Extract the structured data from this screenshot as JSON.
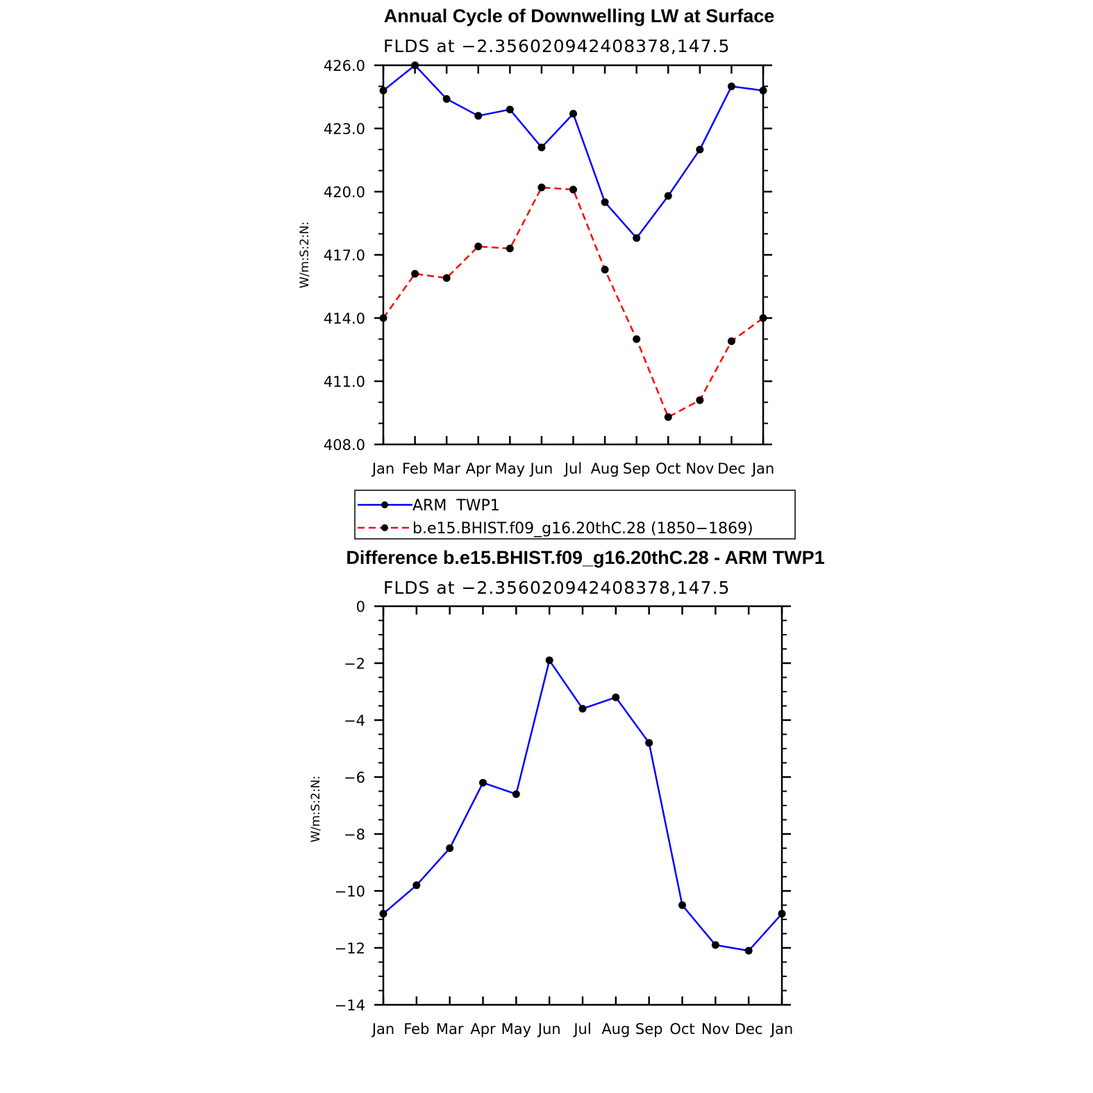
{
  "chart_data": [
    {
      "type": "line",
      "title": "Annual Cycle of Downwelling LW at Surface",
      "subtitle": "FLDS at −2.356020942408378,147.5",
      "xlabel": "",
      "ylabel": "W/m:S:2:N:",
      "categories": [
        "Jan",
        "Feb",
        "Mar",
        "Apr",
        "May",
        "Jun",
        "Jul",
        "Aug",
        "Sep",
        "Oct",
        "Nov",
        "Dec",
        "Jan"
      ],
      "ylim": [
        408.0,
        426.0
      ],
      "yticks": [
        "408.0",
        "411.0",
        "414.0",
        "417.0",
        "420.0",
        "423.0",
        "426.0"
      ],
      "series": [
        {
          "name": "ARM  TWP1",
          "color": "#0000ff",
          "dash": "solid",
          "values": [
            424.8,
            426.0,
            424.4,
            423.6,
            423.9,
            422.1,
            423.7,
            419.5,
            417.8,
            419.8,
            422.0,
            425.0,
            424.8
          ]
        },
        {
          "name": "b.e15.BHIST.f09_g16.20thC.28 (1850−1869)",
          "color": "#ff0000",
          "dash": "dashed",
          "values": [
            414.0,
            416.1,
            415.9,
            417.4,
            417.3,
            420.2,
            420.1,
            416.3,
            413.0,
            409.3,
            410.1,
            412.9,
            414.0
          ]
        }
      ]
    },
    {
      "type": "line",
      "title": "Difference b.e15.BHIST.f09_g16.20thC.28 - ARM TWP1",
      "subtitle": "FLDS at −2.356020942408378,147.5",
      "xlabel": "",
      "ylabel": "W/m:S:2:N:",
      "categories": [
        "Jan",
        "Feb",
        "Mar",
        "Apr",
        "May",
        "Jun",
        "Jul",
        "Aug",
        "Sep",
        "Oct",
        "Nov",
        "Dec",
        "Jan"
      ],
      "ylim": [
        -14,
        0
      ],
      "yticks": [
        "−14",
        "−12",
        "−10",
        "−8",
        "−6",
        "−4",
        "−2",
        "0"
      ],
      "series": [
        {
          "color": "#0000ff",
          "dash": "solid",
          "values": [
            -10.8,
            -9.8,
            -8.5,
            -6.2,
            -6.6,
            -1.9,
            -3.6,
            -3.2,
            -4.8,
            -10.5,
            -11.9,
            -12.1,
            -10.8
          ]
        }
      ]
    }
  ]
}
